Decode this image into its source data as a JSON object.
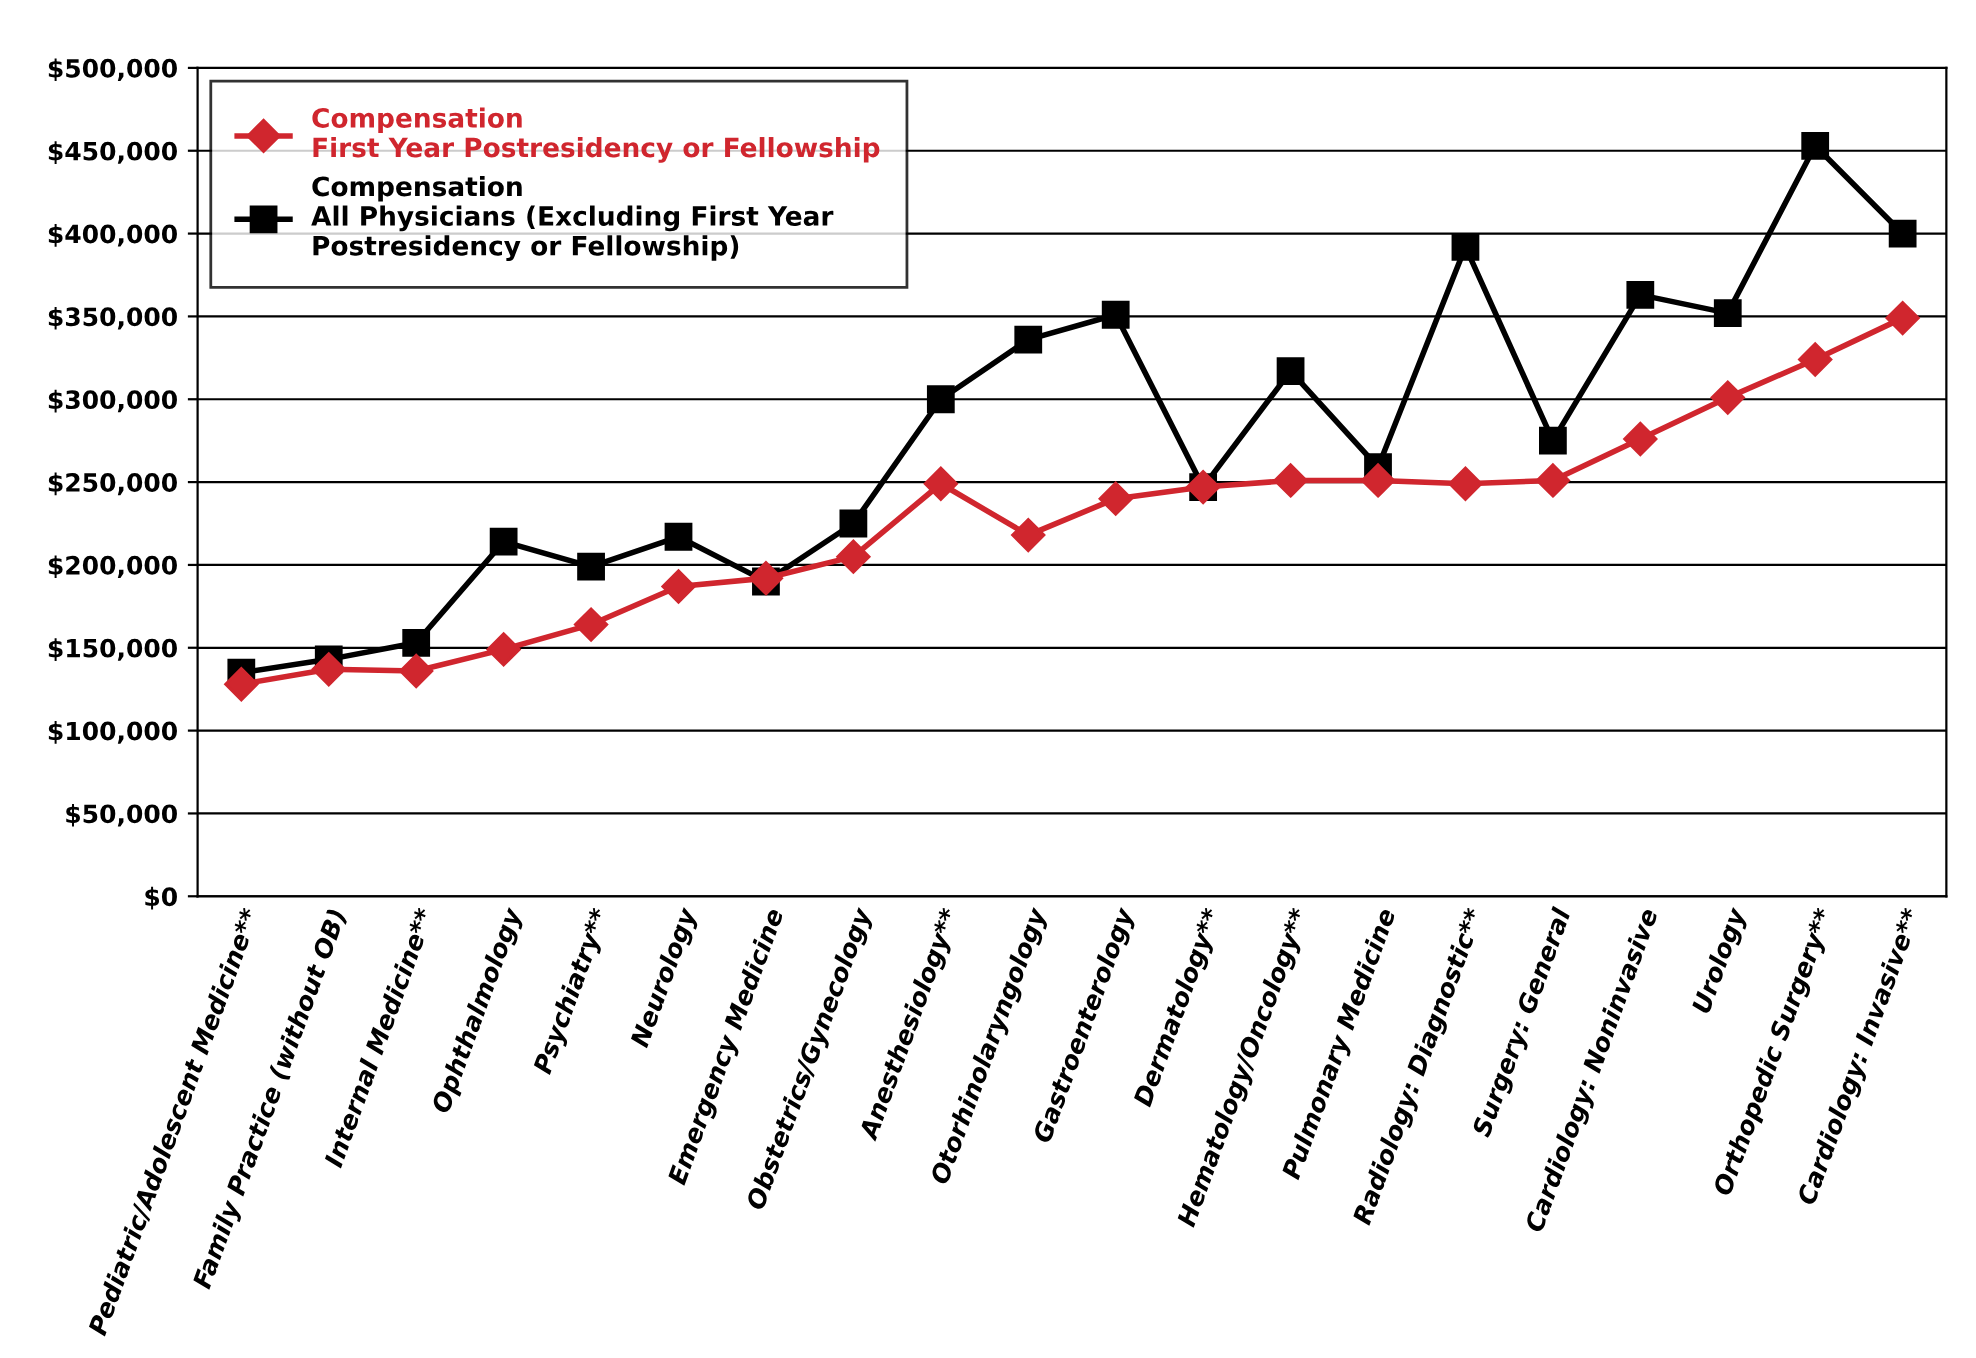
{
  "chart_data": {
    "type": "line",
    "categories": [
      "Pediatric/Adolescent Medicine**",
      "Family Practice (without OB)",
      "Internal Medicine**",
      "Ophthalmology",
      "Psychiatry**",
      "Neurology",
      "Emergency Medicine",
      "Obstetrics/Gynecology",
      "Anesthesiology**",
      "Otorhinolaryngology",
      "Gastroenterology",
      "Dermatology**",
      "Hematology/Oncology**",
      "Pulmonary Medicine",
      "Radiology: Diagnostic**",
      "Surgery: General",
      "Cardiology: Noninvasive",
      "Urology",
      "Orthopedic Surgery**",
      "Cardiology: Invasive**"
    ],
    "series": [
      {
        "name": "Compensation\nFirst Year Postresidency or Fellowship",
        "color": "#d0262e",
        "marker": "diamond",
        "values": [
          128000,
          137000,
          136000,
          149000,
          164000,
          187000,
          192000,
          205000,
          249000,
          218000,
          240000,
          247000,
          251000,
          251000,
          249000,
          251000,
          276000,
          301000,
          324000,
          349000
        ]
      },
      {
        "name": "Compensation\nAll Physicians (Excluding First Year\nPostresidency or Fellowship)",
        "color": "#000000",
        "marker": "square",
        "values": [
          135000,
          143000,
          153000,
          214000,
          199000,
          217000,
          190000,
          225000,
          300000,
          336000,
          351000,
          247000,
          317000,
          259000,
          392000,
          275000,
          363000,
          352000,
          453000,
          400000
        ]
      }
    ],
    "ylim": [
      0,
      500000
    ],
    "yticks": [
      {
        "value": 0,
        "label": "$0"
      },
      {
        "value": 50000,
        "label": "$50,000"
      },
      {
        "value": 100000,
        "label": "$100,000"
      },
      {
        "value": 150000,
        "label": "$150,000"
      },
      {
        "value": 200000,
        "label": "$200,000"
      },
      {
        "value": 250000,
        "label": "$250,000"
      },
      {
        "value": 300000,
        "label": "$300,000"
      },
      {
        "value": 350000,
        "label": "$350,000"
      },
      {
        "value": 400000,
        "label": "$400,000"
      },
      {
        "value": 450000,
        "label": "$450,000"
      },
      {
        "value": 500000,
        "label": "$500,000"
      }
    ],
    "grid": "y",
    "legend": "top left",
    "line_style": "solid"
  }
}
